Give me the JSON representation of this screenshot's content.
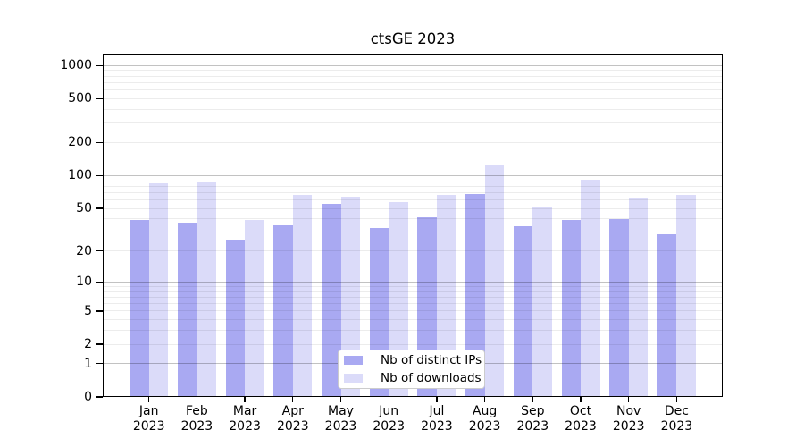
{
  "chart_data": {
    "type": "bar",
    "title": "ctsGE 2023",
    "yscale": "log1p",
    "categories": [
      "Jan",
      "Feb",
      "Mar",
      "Apr",
      "May",
      "Jun",
      "Jul",
      "Aug",
      "Sep",
      "Oct",
      "Nov",
      "Dec"
    ],
    "year_label": "2023",
    "series": [
      {
        "name": "Nb of distinct IPs",
        "color": "#a9a9f2",
        "values": [
          39,
          37,
          25,
          35,
          55,
          33,
          41,
          68,
          34,
          39,
          40,
          29
        ]
      },
      {
        "name": "Nb of downloads",
        "color": "#dbdbf9",
        "values": [
          85,
          86,
          39,
          67,
          64,
          57,
          67,
          125,
          51,
          92,
          63,
          66
        ]
      }
    ],
    "yticks": [
      0,
      1,
      2,
      5,
      10,
      20,
      50,
      100,
      200,
      500,
      1000
    ],
    "ylim": [
      0,
      1200
    ],
    "xlabel": "",
    "ylabel": "",
    "grid": "horizontal, log minor + major decades",
    "legend_position": "lower center inside plot",
    "colors": {
      "frame": "#000000",
      "legend_border": "#cccccc",
      "background": "#ffffff"
    }
  }
}
